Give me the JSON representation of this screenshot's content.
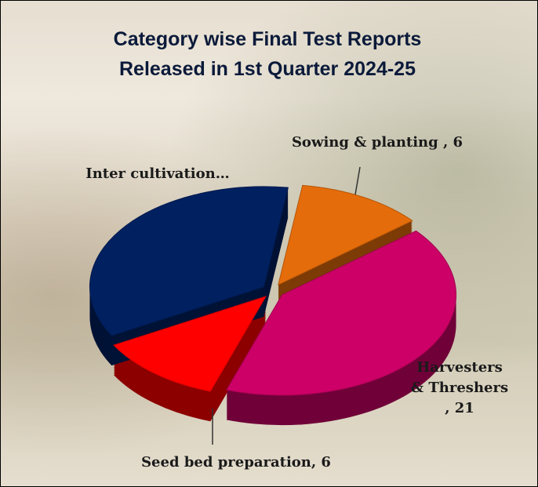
{
  "chart_data": {
    "type": "pie",
    "title": "Category wise Final Test Reports Released in 1st Quarter 2024-25",
    "values": [
      6,
      21,
      6,
      18
    ],
    "value_labels": [
      "Sowing & planting , 6",
      "Harvesters & Threshers , 21",
      "Seed bed preparation, 6",
      "Inter cultivation…"
    ],
    "colors": [
      "#e46c0a",
      "#cc0066",
      "#ff0000",
      "#002060"
    ]
  }
}
